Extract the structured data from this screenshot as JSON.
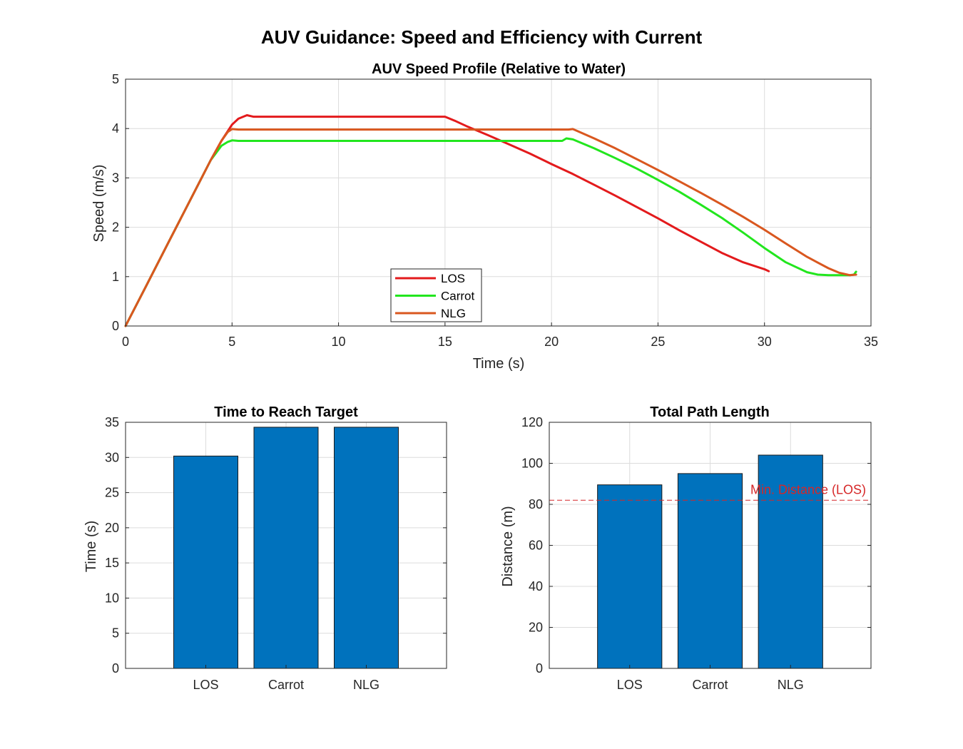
{
  "figure_title": "AUV Guidance: Speed and Efficiency with Current",
  "chart_data": [
    {
      "type": "line",
      "title": "AUV Speed Profile (Relative to Water)",
      "xlabel": "Time (s)",
      "ylabel": "Speed (m/s)",
      "xlim": [
        0,
        35
      ],
      "ylim": [
        0,
        5
      ],
      "xticks": [
        0,
        5,
        10,
        15,
        20,
        25,
        30,
        35
      ],
      "yticks": [
        0,
        1,
        2,
        3,
        4,
        5
      ],
      "grid": true,
      "legend_position": "bottom-center",
      "series": [
        {
          "name": "LOS",
          "color": "#e31a1c",
          "x": [
            0,
            1,
            2,
            3,
            4,
            4.5,
            5,
            5.3,
            5.7,
            6,
            10,
            15,
            15.5,
            16,
            17,
            18,
            19,
            20,
            21,
            22,
            23,
            24,
            25,
            26,
            27,
            28,
            29,
            30,
            30.2
          ],
          "y": [
            0,
            0.84,
            1.68,
            2.52,
            3.36,
            3.75,
            4.08,
            4.2,
            4.27,
            4.24,
            4.24,
            4.24,
            4.15,
            4.05,
            3.87,
            3.68,
            3.49,
            3.28,
            3.08,
            2.86,
            2.64,
            2.41,
            2.18,
            1.94,
            1.71,
            1.48,
            1.29,
            1.15,
            1.11
          ]
        },
        {
          "name": "Carrot",
          "color": "#22e61e",
          "x": [
            0,
            1,
            2,
            3,
            4,
            4.5,
            4.8,
            5.0,
            5.3,
            10,
            15,
            20,
            20.5,
            20.7,
            21,
            22,
            23,
            24,
            25,
            26,
            27,
            28,
            29,
            30,
            31,
            32,
            32.5,
            33,
            34,
            34.2,
            34.3
          ],
          "y": [
            0,
            0.84,
            1.68,
            2.52,
            3.36,
            3.65,
            3.73,
            3.76,
            3.75,
            3.75,
            3.75,
            3.75,
            3.75,
            3.8,
            3.78,
            3.6,
            3.4,
            3.19,
            2.96,
            2.72,
            2.46,
            2.19,
            1.89,
            1.58,
            1.29,
            1.09,
            1.04,
            1.03,
            1.03,
            1.04,
            1.1
          ]
        },
        {
          "name": "NLG",
          "color": "#d9571f",
          "x": [
            0,
            1,
            2,
            3,
            4,
            4.5,
            4.8,
            5.0,
            5.3,
            10,
            15,
            20,
            20.8,
            21,
            22,
            23,
            24,
            25,
            26,
            27,
            28,
            29,
            30,
            31,
            32,
            33,
            33.5,
            34,
            34.3
          ],
          "y": [
            0,
            0.84,
            1.68,
            2.52,
            3.36,
            3.75,
            3.93,
            3.99,
            3.98,
            3.98,
            3.98,
            3.98,
            3.98,
            3.99,
            3.8,
            3.6,
            3.38,
            3.16,
            2.93,
            2.7,
            2.46,
            2.21,
            1.95,
            1.67,
            1.4,
            1.17,
            1.08,
            1.03,
            1.04
          ]
        }
      ]
    },
    {
      "type": "bar",
      "title": "Time to Reach Target",
      "xlabel": "",
      "ylabel": "Time (s)",
      "categories": [
        "LOS",
        "Carrot",
        "NLG"
      ],
      "values": [
        30.2,
        34.3,
        34.3
      ],
      "ylim": [
        0,
        35
      ],
      "yticks": [
        0,
        5,
        10,
        15,
        20,
        25,
        30,
        35
      ],
      "bar_color": "#0072bd",
      "grid": true
    },
    {
      "type": "bar",
      "title": "Total Path Length",
      "xlabel": "",
      "ylabel": "Distance (m)",
      "categories": [
        "LOS",
        "Carrot",
        "NLG"
      ],
      "values": [
        89.5,
        95,
        104
      ],
      "ylim": [
        0,
        120
      ],
      "yticks": [
        0,
        20,
        40,
        60,
        80,
        100,
        120
      ],
      "bar_color": "#0072bd",
      "grid": true,
      "reference_line": {
        "value": 82,
        "label": "Min. Distance (LOS)",
        "color": "#d62728",
        "style": "dashed"
      }
    }
  ]
}
